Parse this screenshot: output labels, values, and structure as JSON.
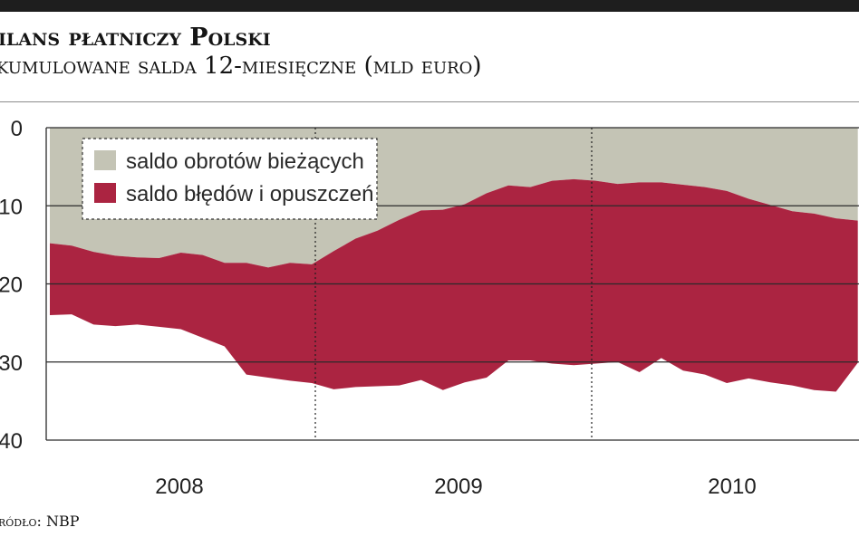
{
  "header": {
    "title": "ilans płatniczy Polski",
    "subtitle": "kumulowane salda 12-miesięczne (mld euro)"
  },
  "footer": {
    "source": "ródło: NBP"
  },
  "chart_data": {
    "type": "area",
    "title": "ilans płatniczy Polski",
    "subtitle": "kumulowane salda 12-miesięczne (mld euro)",
    "xlabel": "",
    "ylabel": "",
    "x_tick_labels": [
      "2008",
      "2009",
      "2010"
    ],
    "y_tick_labels": [
      "0",
      "10",
      "20",
      "30",
      "40"
    ],
    "ylim": [
      0,
      40
    ],
    "y_axis_inverted": true,
    "grid": "horizontal",
    "legend_position": "top-left",
    "x": [
      "2007-11",
      "2007-12",
      "2008-01",
      "2008-02",
      "2008-03",
      "2008-04",
      "2008-05",
      "2008-06",
      "2008-07",
      "2008-08",
      "2008-09",
      "2008-10",
      "2008-11",
      "2008-12",
      "2009-01",
      "2009-02",
      "2009-03",
      "2009-04",
      "2009-05",
      "2009-06",
      "2009-07",
      "2009-08",
      "2009-09",
      "2009-10",
      "2009-11",
      "2009-12",
      "2010-01",
      "2010-02",
      "2010-03",
      "2010-04",
      "2010-05",
      "2010-06",
      "2010-07",
      "2010-08",
      "2010-09",
      "2010-10",
      "2010-11",
      "2010-12"
    ],
    "series": [
      {
        "name": "saldo obrotów bieżących",
        "color": "#c4c4b5",
        "values": [
          -14.8,
          -15.1,
          -15.9,
          -16.4,
          -16.6,
          -16.7,
          -16.0,
          -16.3,
          -17.3,
          -17.3,
          -17.9,
          -17.3,
          -17.5,
          -15.8,
          -14.2,
          -13.2,
          -11.8,
          -10.6,
          -10.5,
          -9.8,
          -8.4,
          -7.4,
          -7.6,
          -6.8,
          -6.6,
          -6.8,
          -7.2,
          -7.0,
          -7.0,
          -7.3,
          -7.6,
          -8.1,
          -9.1,
          -9.9,
          -10.7,
          -11.0,
          -11.6,
          -11.9
        ]
      },
      {
        "name": "saldo błędów i opuszczeń",
        "color": "#ab2441",
        "values": [
          -9.2,
          -8.8,
          -9.3,
          -9.0,
          -8.6,
          -8.8,
          -9.8,
          -10.6,
          -10.7,
          -14.3,
          -14.1,
          -15.1,
          -15.2,
          -17.7,
          -19.0,
          -19.9,
          -21.2,
          -21.7,
          -23.1,
          -22.8,
          -23.6,
          -22.4,
          -22.2,
          -23.4,
          -23.8,
          -23.4,
          -22.8,
          -24.3,
          -22.5,
          -23.8,
          -24.0,
          -24.6,
          -23.0,
          -22.7,
          -22.3,
          -22.6,
          -22.2,
          -18.2
        ]
      }
    ]
  }
}
